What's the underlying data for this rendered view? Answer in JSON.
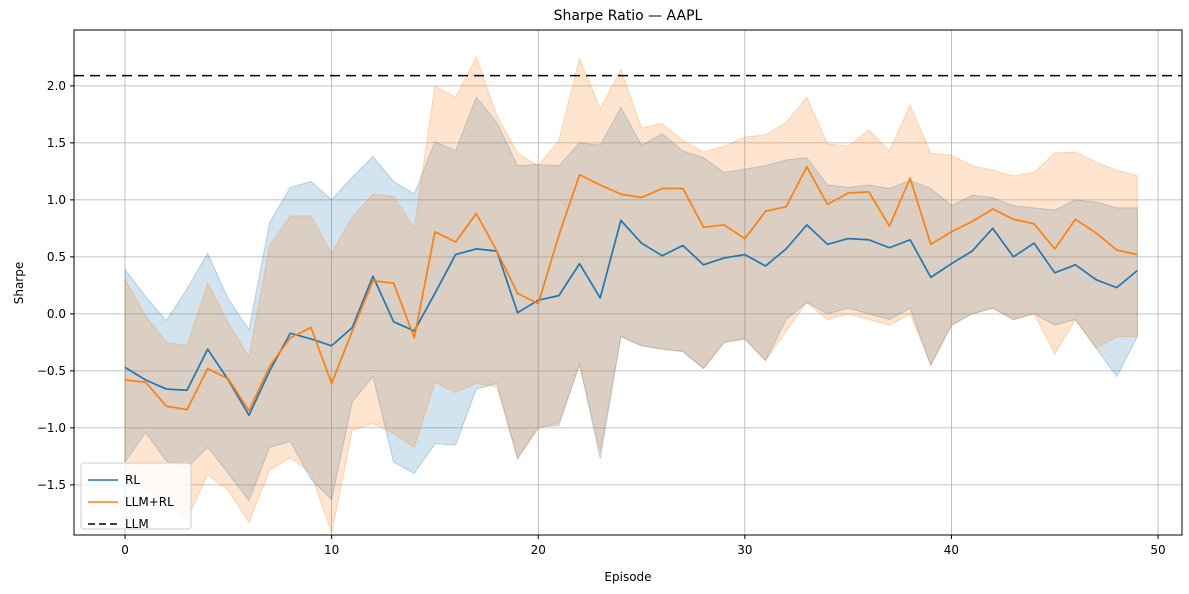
{
  "title": "Sharpe Ratio — AAPL",
  "xlabel": "Episode",
  "ylabel": "Sharpe",
  "legend": {
    "rl": "RL",
    "llm_rl": "LLM+RL",
    "llm": "LLM"
  },
  "colors": {
    "rl": "#1f77b4",
    "llm_rl": "#ff7f0e",
    "llm": "#000000",
    "grid": "#b0b0b0",
    "spine": "#000000",
    "band_alpha": 0.2
  },
  "chart_data": {
    "type": "line",
    "x": [
      0,
      1,
      2,
      3,
      4,
      5,
      6,
      7,
      8,
      9,
      10,
      11,
      12,
      13,
      14,
      15,
      16,
      17,
      18,
      19,
      20,
      21,
      22,
      23,
      24,
      25,
      26,
      27,
      28,
      29,
      30,
      31,
      32,
      33,
      34,
      35,
      36,
      37,
      38,
      39,
      40,
      41,
      42,
      43,
      44,
      45,
      46,
      47,
      48,
      49
    ],
    "series": [
      {
        "name": "RL",
        "color_key": "rl",
        "style": "solid",
        "values": [
          -0.47,
          -0.58,
          -0.66,
          -0.67,
          -0.31,
          -0.58,
          -0.89,
          -0.5,
          -0.17,
          -0.22,
          -0.28,
          -0.12,
          0.33,
          -0.07,
          -0.15,
          0.18,
          0.52,
          0.57,
          0.55,
          0.01,
          0.12,
          0.16,
          0.44,
          0.14,
          0.82,
          0.62,
          0.51,
          0.6,
          0.43,
          0.49,
          0.52,
          0.42,
          0.57,
          0.78,
          0.61,
          0.66,
          0.65,
          0.58,
          0.65,
          0.32,
          0.44,
          0.55,
          0.75,
          0.5,
          0.62,
          0.36,
          0.43,
          0.3,
          0.23,
          0.38
        ],
        "band_lower": [
          -1.3,
          -1.04,
          -1.29,
          -1.35,
          -1.17,
          -1.4,
          -1.64,
          -1.17,
          -1.12,
          -1.45,
          -1.63,
          -0.77,
          -0.55,
          -1.3,
          -1.4,
          -1.14,
          -1.15,
          -0.66,
          -0.61,
          -1.27,
          -0.99,
          -0.98,
          -0.44,
          -1.27,
          -0.2,
          -0.28,
          -0.31,
          -0.33,
          -0.48,
          -0.25,
          -0.22,
          -0.41,
          -0.05,
          0.1,
          0.0,
          0.05,
          0.0,
          -0.05,
          0.05,
          -0.45,
          -0.1,
          0.0,
          0.05,
          -0.05,
          0.0,
          -0.1,
          -0.05,
          -0.3,
          -0.55,
          -0.2
        ],
        "band_upper": [
          0.39,
          0.15,
          -0.06,
          0.22,
          0.53,
          0.13,
          -0.14,
          0.8,
          1.11,
          1.16,
          1.0,
          1.2,
          1.38,
          1.16,
          1.05,
          1.51,
          1.43,
          1.9,
          1.68,
          1.3,
          1.31,
          1.3,
          1.5,
          1.48,
          1.81,
          1.48,
          1.58,
          1.43,
          1.37,
          1.24,
          1.27,
          1.3,
          1.35,
          1.37,
          1.13,
          1.11,
          1.13,
          1.1,
          1.17,
          1.1,
          0.95,
          1.04,
          1.02,
          0.95,
          0.93,
          0.91,
          1.0,
          0.98,
          0.93,
          0.93
        ]
      },
      {
        "name": "LLM+RL",
        "color_key": "llm_rl",
        "style": "solid",
        "values": [
          -0.58,
          -0.6,
          -0.81,
          -0.84,
          -0.48,
          -0.57,
          -0.85,
          -0.46,
          -0.21,
          -0.12,
          -0.61,
          -0.15,
          0.29,
          0.27,
          -0.21,
          0.72,
          0.63,
          0.88,
          0.55,
          0.18,
          0.09,
          0.69,
          1.22,
          1.13,
          1.05,
          1.02,
          1.1,
          1.1,
          0.76,
          0.78,
          0.66,
          0.9,
          0.94,
          1.29,
          0.96,
          1.06,
          1.07,
          0.77,
          1.19,
          0.61,
          0.72,
          0.81,
          0.92,
          0.83,
          0.79,
          0.57,
          0.83,
          0.71,
          0.56,
          0.52
        ],
        "band_lower": [
          -1.44,
          -1.55,
          -1.65,
          -1.8,
          -1.41,
          -1.55,
          -1.83,
          -1.37,
          -1.26,
          -1.4,
          -1.92,
          -1.02,
          -0.96,
          -1.05,
          -1.17,
          -0.6,
          -0.69,
          -0.61,
          -0.64,
          -1.27,
          -1.01,
          -0.95,
          -0.45,
          -1.2,
          -0.2,
          -0.28,
          -0.31,
          -0.33,
          -0.48,
          -0.25,
          -0.22,
          -0.41,
          -0.15,
          0.1,
          -0.05,
          0.0,
          -0.05,
          -0.1,
          0.0,
          -0.45,
          -0.1,
          0.0,
          0.05,
          -0.05,
          0.0,
          -0.35,
          -0.05,
          -0.3,
          -0.2,
          -0.2
        ],
        "band_upper": [
          0.3,
          -0.02,
          -0.25,
          -0.28,
          0.27,
          -0.08,
          -0.38,
          0.6,
          0.86,
          0.86,
          0.53,
          0.85,
          1.05,
          1.03,
          0.75,
          2.0,
          1.9,
          2.25,
          1.74,
          1.41,
          1.3,
          1.52,
          2.24,
          1.8,
          2.14,
          1.63,
          1.67,
          1.52,
          1.42,
          1.47,
          1.55,
          1.57,
          1.68,
          1.9,
          1.49,
          1.47,
          1.61,
          1.43,
          1.83,
          1.41,
          1.39,
          1.3,
          1.26,
          1.21,
          1.24,
          1.41,
          1.42,
          1.33,
          1.26,
          1.21
        ]
      },
      {
        "name": "LLM",
        "color_key": "llm",
        "style": "dashed",
        "constant": 2.09
      }
    ],
    "xticks": [
      0,
      10,
      20,
      30,
      40,
      50
    ],
    "yticks": [
      2.0,
      1.5,
      1.0,
      0.5,
      0.0,
      -0.5,
      -1.0,
      -1.5
    ],
    "xlim": [
      -2.47,
      51.16
    ],
    "ylim": [
      -1.94,
      2.49
    ],
    "grid": true,
    "legend_position": "lower left"
  }
}
